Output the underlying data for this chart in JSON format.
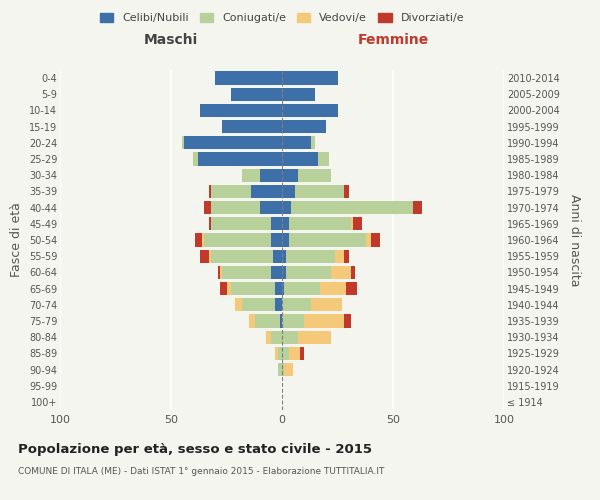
{
  "age_groups": [
    "100+",
    "95-99",
    "90-94",
    "85-89",
    "80-84",
    "75-79",
    "70-74",
    "65-69",
    "60-64",
    "55-59",
    "50-54",
    "45-49",
    "40-44",
    "35-39",
    "30-34",
    "25-29",
    "20-24",
    "15-19",
    "10-14",
    "5-9",
    "0-4"
  ],
  "birth_years": [
    "≤ 1914",
    "1915-1919",
    "1920-1924",
    "1925-1929",
    "1930-1934",
    "1935-1939",
    "1940-1944",
    "1945-1949",
    "1950-1954",
    "1955-1959",
    "1960-1964",
    "1965-1969",
    "1970-1974",
    "1975-1979",
    "1980-1984",
    "1985-1989",
    "1990-1994",
    "1995-1999",
    "2000-2004",
    "2005-2009",
    "2010-2014"
  ],
  "maschi": {
    "celibi": [
      0,
      0,
      0,
      0,
      0,
      1,
      3,
      3,
      5,
      4,
      5,
      5,
      10,
      14,
      10,
      38,
      44,
      27,
      37,
      23,
      30
    ],
    "coniugati": [
      0,
      0,
      2,
      2,
      5,
      11,
      15,
      20,
      22,
      28,
      30,
      27,
      22,
      18,
      8,
      2,
      1,
      0,
      0,
      0,
      0
    ],
    "vedovi": [
      0,
      0,
      0,
      1,
      2,
      3,
      3,
      2,
      1,
      1,
      1,
      0,
      0,
      0,
      0,
      0,
      0,
      0,
      0,
      0,
      0
    ],
    "divorziati": [
      0,
      0,
      0,
      0,
      0,
      0,
      0,
      3,
      1,
      4,
      3,
      1,
      3,
      1,
      0,
      0,
      0,
      0,
      0,
      0,
      0
    ]
  },
  "femmine": {
    "nubili": [
      0,
      0,
      0,
      0,
      0,
      0,
      0,
      1,
      2,
      2,
      3,
      3,
      4,
      6,
      7,
      16,
      13,
      20,
      25,
      15,
      25
    ],
    "coniugate": [
      0,
      0,
      1,
      3,
      7,
      10,
      13,
      16,
      20,
      22,
      35,
      28,
      55,
      22,
      15,
      5,
      2,
      0,
      0,
      0,
      0
    ],
    "vedove": [
      0,
      0,
      4,
      5,
      15,
      18,
      14,
      12,
      9,
      4,
      2,
      1,
      0,
      0,
      0,
      0,
      0,
      0,
      0,
      0,
      0
    ],
    "divorziate": [
      0,
      0,
      0,
      2,
      0,
      3,
      0,
      5,
      2,
      2,
      4,
      4,
      4,
      2,
      0,
      0,
      0,
      0,
      0,
      0,
      0
    ]
  },
  "colors": {
    "celibi": "#3d6fa8",
    "coniugati": "#b8d09a",
    "vedovi": "#f5c97a",
    "divorziati": "#c0392b"
  },
  "xlim": 100,
  "title": "Popolazione per età, sesso e stato civile - 2015",
  "subtitle": "COMUNE DI ITALA (ME) - Dati ISTAT 1° gennaio 2015 - Elaborazione TUTTITALIA.IT",
  "ylabel_left": "Fasce di età",
  "ylabel_right": "Anni di nascita",
  "xlabel_maschi": "Maschi",
  "xlabel_femmine": "Femmine",
  "legend_labels": [
    "Celibi/Nubili",
    "Coniugati/e",
    "Vedovi/e",
    "Divorziati/e"
  ],
  "bg_color": "#f5f5f0"
}
